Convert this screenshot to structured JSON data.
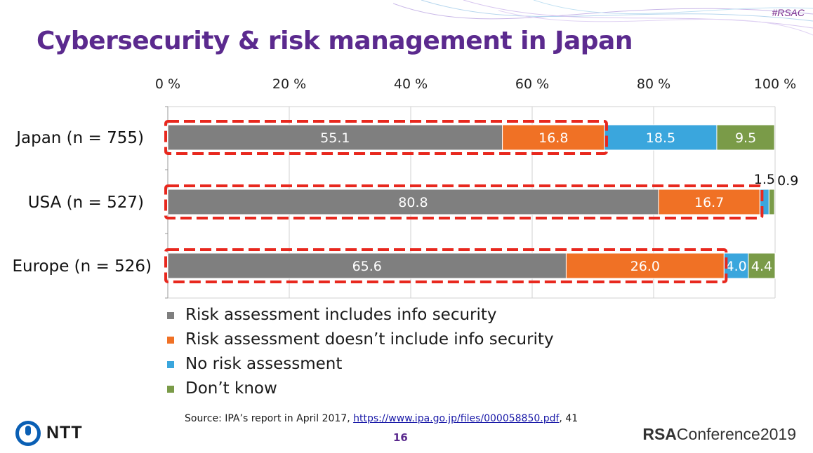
{
  "header": {
    "title": "Cybersecurity & risk management in Japan",
    "hashtag": "#RSAC"
  },
  "chart_data": {
    "type": "bar",
    "orientation": "horizontal",
    "stacked": true,
    "xlim": [
      0,
      100
    ],
    "x_ticks": [
      "0 %",
      "20 %",
      "40 %",
      "60 %",
      "80 %",
      "100 %"
    ],
    "categories": [
      "Japan (n = 755)",
      "USA (n = 527)",
      "Europe (n = 526)"
    ],
    "series": [
      {
        "name": "Risk assessment includes info security",
        "color": "#7f7f7f",
        "values": [
          55.1,
          80.8,
          65.6
        ],
        "labels": [
          "55.1",
          "80.8",
          "65.6"
        ]
      },
      {
        "name": "Risk assessment doesn’t include info security",
        "color": "#f07125",
        "values": [
          16.8,
          16.7,
          26.0
        ],
        "labels": [
          "16.8",
          "16.7",
          "26.0"
        ]
      },
      {
        "name": "No risk assessment",
        "color": "#3aa6dd",
        "values": [
          18.5,
          1.5,
          4.0
        ],
        "labels": [
          "18.5",
          "1.5",
          "4.0"
        ]
      },
      {
        "name": "Don’t know",
        "color": "#7a9b48",
        "values": [
          9.5,
          0.9,
          4.4
        ],
        "labels": [
          "9.5",
          "0.9",
          "4.4"
        ]
      }
    ],
    "grid": true,
    "legend_position": "bottom",
    "highlight_color": "#e8281e"
  },
  "footer": {
    "source_prefix": "Source: IPA’s report in April 2017, ",
    "source_link": "https://www.ipa.go.jp/files/000058850.pdf",
    "source_suffix": ", 41",
    "page_number": "16",
    "ntt_logo": "NTT",
    "rsa_logo_bold": "RSA",
    "rsa_logo_rest": "Conference2019"
  }
}
